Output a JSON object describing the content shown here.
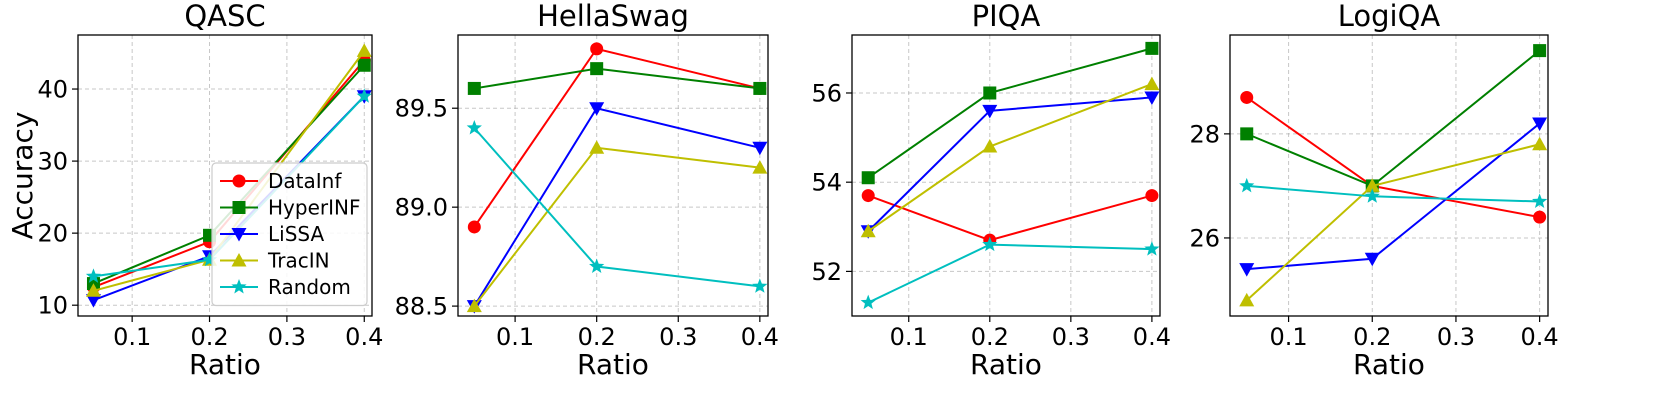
{
  "chart_data": [
    {
      "type": "line",
      "title": "QASC",
      "xlabel": "Ratio",
      "ylabel": "Accuracy",
      "x": [
        0.05,
        0.2,
        0.4
      ],
      "xlim": [
        0.03,
        0.41
      ],
      "ylim": [
        8.5,
        47.5
      ],
      "xticks": [
        0.1,
        0.2,
        0.3,
        0.4
      ],
      "yticks": [
        10,
        20,
        30,
        40
      ],
      "xtick_labels": [
        "0.1",
        "0.2",
        "0.3",
        "0.4"
      ],
      "ytick_labels": [
        "10",
        "20",
        "30",
        "40"
      ],
      "grid": true,
      "legend": "lower-right",
      "series": [
        {
          "name": "DataInf",
          "color": "#ff0000",
          "marker": "circle",
          "values": [
            12.5,
            18.8,
            44.0
          ]
        },
        {
          "name": "HyperINF",
          "color": "#008000",
          "marker": "square",
          "values": [
            13.0,
            19.7,
            43.3
          ]
        },
        {
          "name": "LiSSA",
          "color": "#0000ff",
          "marker": "triangle-down",
          "values": [
            10.7,
            16.8,
            39.0
          ]
        },
        {
          "name": "TracIN",
          "color": "#bfbf00",
          "marker": "triangle-up",
          "values": [
            12.0,
            16.3,
            45.3
          ]
        },
        {
          "name": "Random",
          "color": "#00bfbf",
          "marker": "star",
          "values": [
            14.0,
            16.3,
            39.0
          ]
        }
      ]
    },
    {
      "type": "line",
      "title": "HellaSwag",
      "xlabel": "Ratio",
      "ylabel": "",
      "x": [
        0.05,
        0.2,
        0.4
      ],
      "xlim": [
        0.03,
        0.41
      ],
      "ylim": [
        88.45,
        89.87
      ],
      "xticks": [
        0.1,
        0.2,
        0.3,
        0.4
      ],
      "yticks": [
        88.5,
        89.0,
        89.5
      ],
      "xtick_labels": [
        "0.1",
        "0.2",
        "0.3",
        "0.4"
      ],
      "ytick_labels": [
        "88.5",
        "89.0",
        "89.5"
      ],
      "grid": true,
      "series": [
        {
          "name": "DataInf",
          "color": "#ff0000",
          "marker": "circle",
          "values": [
            88.9,
            89.8,
            89.6
          ]
        },
        {
          "name": "HyperINF",
          "color": "#008000",
          "marker": "square",
          "values": [
            89.6,
            89.7,
            89.6
          ]
        },
        {
          "name": "LiSSA",
          "color": "#0000ff",
          "marker": "triangle-down",
          "values": [
            88.5,
            89.5,
            89.3
          ]
        },
        {
          "name": "TracIN",
          "color": "#bfbf00",
          "marker": "triangle-up",
          "values": [
            88.5,
            89.3,
            89.2
          ]
        },
        {
          "name": "Random",
          "color": "#00bfbf",
          "marker": "star",
          "values": [
            89.4,
            88.7,
            88.6
          ]
        }
      ]
    },
    {
      "type": "line",
      "title": "PIQA",
      "xlabel": "Ratio",
      "ylabel": "",
      "x": [
        0.05,
        0.2,
        0.4
      ],
      "xlim": [
        0.03,
        0.41
      ],
      "ylim": [
        51.0,
        57.3
      ],
      "xticks": [
        0.1,
        0.2,
        0.3,
        0.4
      ],
      "yticks": [
        52,
        54,
        56
      ],
      "xtick_labels": [
        "0.1",
        "0.2",
        "0.3",
        "0.4"
      ],
      "ytick_labels": [
        "52",
        "54",
        "56"
      ],
      "grid": true,
      "series": [
        {
          "name": "DataInf",
          "color": "#ff0000",
          "marker": "circle",
          "values": [
            53.7,
            52.7,
            53.7
          ]
        },
        {
          "name": "HyperINF",
          "color": "#008000",
          "marker": "square",
          "values": [
            54.1,
            56.0,
            57.0
          ]
        },
        {
          "name": "LiSSA",
          "color": "#0000ff",
          "marker": "triangle-down",
          "values": [
            52.9,
            55.6,
            55.9
          ]
        },
        {
          "name": "TracIN",
          "color": "#bfbf00",
          "marker": "triangle-up",
          "values": [
            52.9,
            54.8,
            56.2
          ]
        },
        {
          "name": "Random",
          "color": "#00bfbf",
          "marker": "star",
          "values": [
            51.3,
            52.6,
            52.5
          ]
        }
      ]
    },
    {
      "type": "line",
      "title": "LogiQA",
      "xlabel": "Ratio",
      "ylabel": "",
      "x": [
        0.05,
        0.2,
        0.4
      ],
      "xlim": [
        0.03,
        0.41
      ],
      "ylim": [
        24.5,
        29.9
      ],
      "xticks": [
        0.1,
        0.2,
        0.3,
        0.4
      ],
      "yticks": [
        26,
        28
      ],
      "xtick_labels": [
        "0.1",
        "0.2",
        "0.3",
        "0.4"
      ],
      "ytick_labels": [
        "26",
        "28"
      ],
      "grid": true,
      "series": [
        {
          "name": "DataInf",
          "color": "#ff0000",
          "marker": "circle",
          "values": [
            28.7,
            27.0,
            26.4
          ]
        },
        {
          "name": "HyperINF",
          "color": "#008000",
          "marker": "square",
          "values": [
            28.0,
            27.0,
            29.6
          ]
        },
        {
          "name": "LiSSA",
          "color": "#0000ff",
          "marker": "triangle-down",
          "values": [
            25.4,
            25.6,
            28.2
          ]
        },
        {
          "name": "TracIN",
          "color": "#bfbf00",
          "marker": "triangle-up",
          "values": [
            24.8,
            27.0,
            27.8
          ]
        },
        {
          "name": "Random",
          "color": "#00bfbf",
          "marker": "star",
          "values": [
            27.0,
            26.8,
            26.7
          ]
        }
      ]
    }
  ]
}
